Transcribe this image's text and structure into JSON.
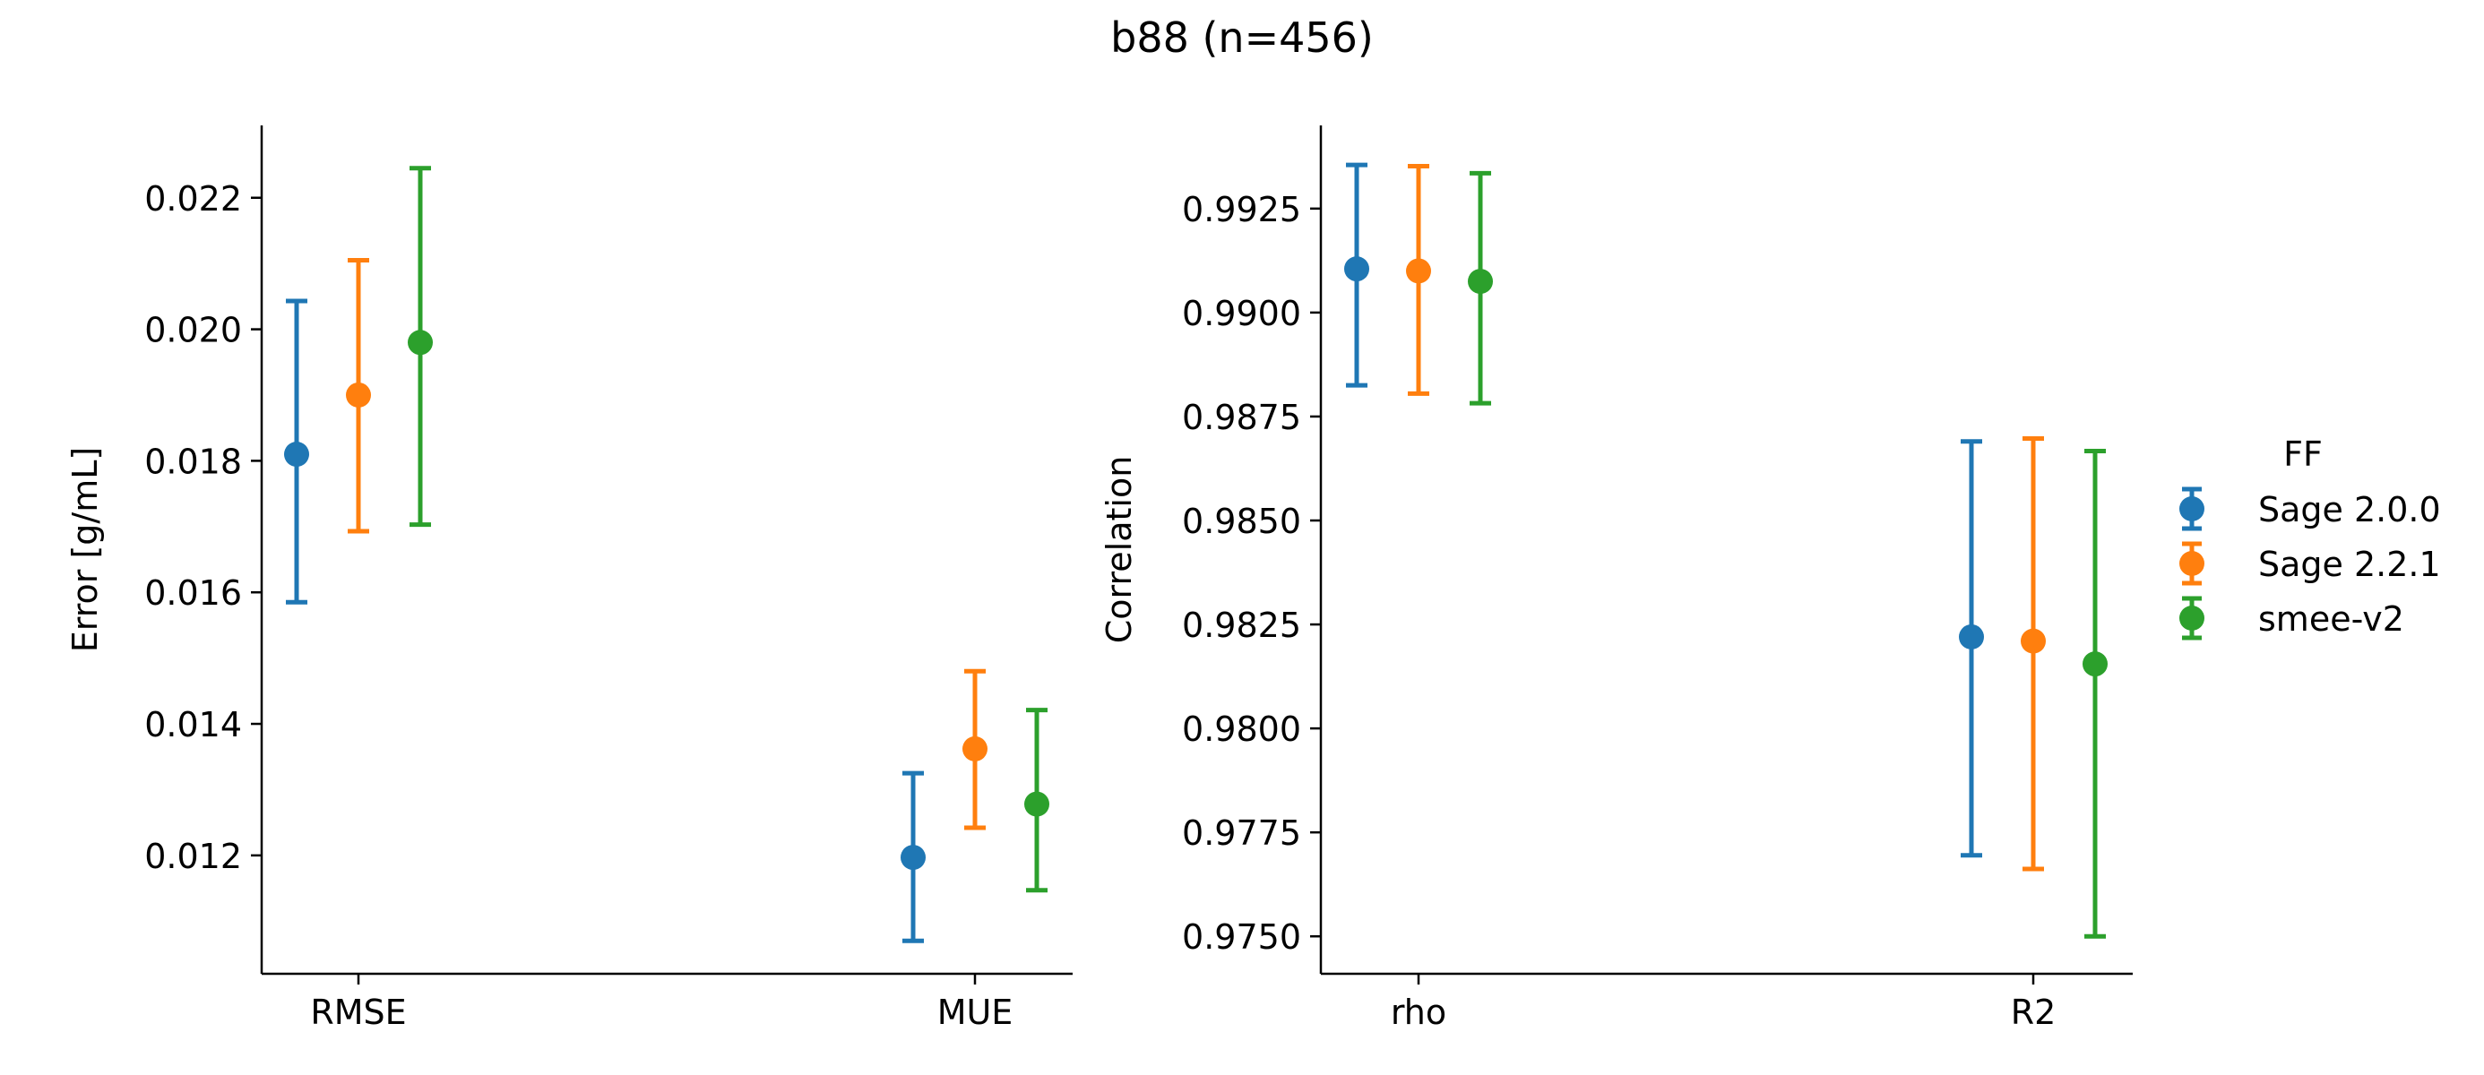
{
  "figure": {
    "title": "b88 (n=456)"
  },
  "legend": {
    "title": "FF",
    "placement": "right"
  },
  "colors": {
    "Sage 2.0.0": "#1f77b4",
    "Sage 2.2.1": "#ff7f0e",
    "smee-v2": "#2ca02c"
  },
  "chart_data": [
    {
      "type": "scatter",
      "style": "point-with-error-bars",
      "ylabel": "Error [g/mL]",
      "xlabel": "",
      "categories": [
        "RMSE",
        "MUE"
      ],
      "ylim": [
        0.0102,
        0.0231
      ],
      "yticks": [
        0.012,
        0.014,
        0.016,
        0.018,
        0.02,
        0.022
      ],
      "ytick_labels": [
        "0.012",
        "0.014",
        "0.016",
        "0.018",
        "0.020",
        "0.022"
      ],
      "grid": false,
      "series": [
        {
          "name": "Sage 2.0.0",
          "values": [
            0.0181,
            0.01197
          ],
          "lower": [
            0.01585,
            0.0107
          ],
          "upper": [
            0.02043,
            0.01325
          ]
        },
        {
          "name": "Sage 2.2.1",
          "values": [
            0.019,
            0.01362
          ],
          "lower": [
            0.01693,
            0.01242
          ],
          "upper": [
            0.02105,
            0.0148
          ]
        },
        {
          "name": "smee-v2",
          "values": [
            0.0198,
            0.01278
          ],
          "lower": [
            0.01703,
            0.01147
          ],
          "upper": [
            0.02245,
            0.01421
          ]
        }
      ]
    },
    {
      "type": "scatter",
      "style": "point-with-error-bars",
      "ylabel": "Correlation",
      "xlabel": "",
      "categories": [
        "rho",
        "R2"
      ],
      "ylim": [
        0.9741,
        0.9945
      ],
      "yticks": [
        0.975,
        0.9775,
        0.98,
        0.9825,
        0.985,
        0.9875,
        0.99,
        0.9925
      ],
      "ytick_labels": [
        "0.9750",
        "0.9775",
        "0.9800",
        "0.9825",
        "0.9850",
        "0.9875",
        "0.9900",
        "0.9925"
      ],
      "grid": false,
      "series": [
        {
          "name": "Sage 2.0.0",
          "values": [
            0.99105,
            0.9822
          ],
          "lower": [
            0.98825,
            0.97695
          ],
          "upper": [
            0.99355,
            0.9869
          ]
        },
        {
          "name": "Sage 2.2.1",
          "values": [
            0.991,
            0.9821
          ],
          "lower": [
            0.98805,
            0.97662
          ],
          "upper": [
            0.99352,
            0.98697
          ]
        },
        {
          "name": "smee-v2",
          "values": [
            0.99075,
            0.98155
          ],
          "lower": [
            0.98782,
            0.975
          ],
          "upper": [
            0.99335,
            0.98667
          ]
        }
      ]
    }
  ]
}
